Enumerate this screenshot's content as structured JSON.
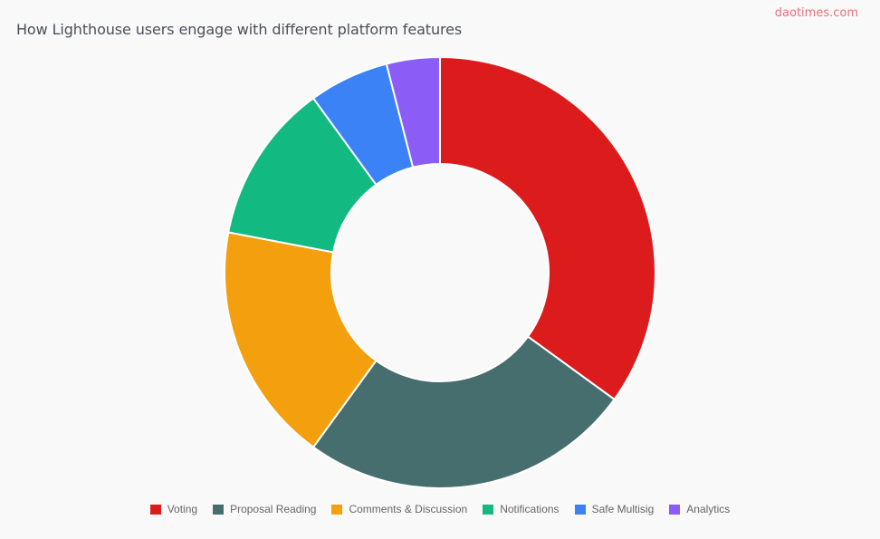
{
  "header": {
    "title": "How Lighthouse users engage with different platform features",
    "watermark": "daotimes.com"
  },
  "chart_data": {
    "type": "pie",
    "variant": "doughnut",
    "title": "How Lighthouse users engage with different platform features",
    "categories": [
      "Voting",
      "Proposal Reading",
      "Comments & Discussion",
      "Notifications",
      "Safe Multisig",
      "Analytics"
    ],
    "values": [
      35,
      25,
      18,
      12,
      6,
      4
    ],
    "colors": [
      "#dc1c1c",
      "#476e6e",
      "#f39f0e",
      "#12b981",
      "#3b82f6",
      "#8b5cf6"
    ],
    "legend_position": "bottom",
    "start_angle": "top, clockwise"
  },
  "legend": {
    "items": [
      {
        "label": "Voting",
        "color": "#dc1c1c"
      },
      {
        "label": "Proposal Reading",
        "color": "#476e6e"
      },
      {
        "label": "Comments & Discussion",
        "color": "#f39f0e"
      },
      {
        "label": "Notifications",
        "color": "#12b981"
      },
      {
        "label": "Safe Multisig",
        "color": "#3b82f6"
      },
      {
        "label": "Analytics",
        "color": "#8b5cf6"
      }
    ]
  }
}
